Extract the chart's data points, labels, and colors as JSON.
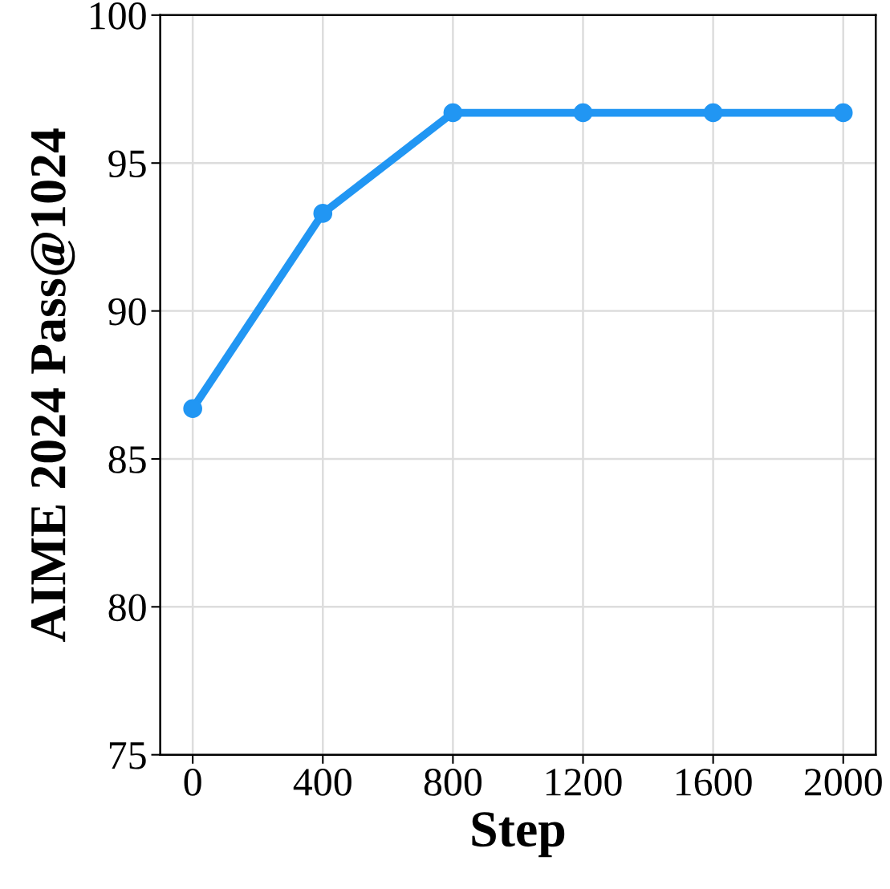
{
  "chart_data": {
    "type": "line",
    "xlabel": "Step",
    "ylabel": "AIME 2024 Pass@1024",
    "x": [
      0,
      400,
      800,
      1200,
      1600,
      2000
    ],
    "series": [
      {
        "color": "#2196f3",
        "values": [
          86.7,
          93.3,
          96.7,
          96.7,
          96.7,
          96.7
        ]
      }
    ],
    "xlim": [
      -100,
      2100
    ],
    "xticks": [
      0,
      400,
      800,
      1200,
      1600,
      2000
    ],
    "ylim": [
      75,
      100
    ],
    "yticks": [
      75,
      80,
      85,
      90,
      95,
      100
    ],
    "grid": true,
    "marker": "circle",
    "line_style": "solid"
  }
}
